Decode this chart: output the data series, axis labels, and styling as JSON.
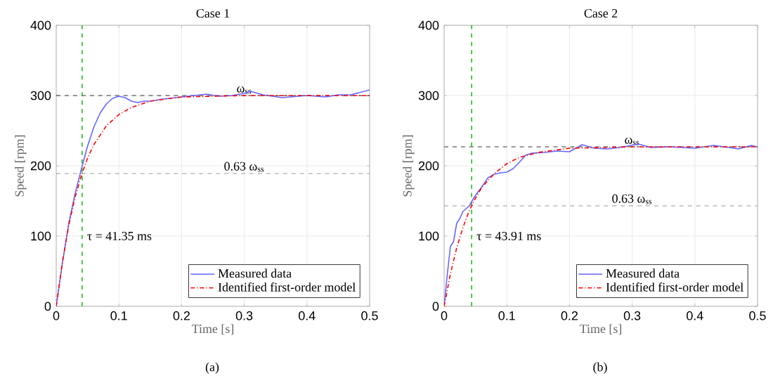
{
  "chart_data": [
    {
      "type": "line",
      "title": "Case 1",
      "xlabel": "Time [s]",
      "ylabel": "Speed [rpm]",
      "annotations": [
        "(a)"
      ],
      "xlim": [
        0,
        0.5
      ],
      "ylim": [
        0,
        400
      ],
      "xticks": [
        0,
        0.1,
        0.2,
        0.3,
        0.4,
        0.5
      ],
      "yticks": [
        0,
        100,
        200,
        300,
        400
      ],
      "grid": true,
      "legend": "bottom right",
      "marker": "none",
      "series": [
        {
          "name": "Measured data",
          "color": "#6666ff",
          "line_style": "solid",
          "x": [
            0,
            0.01,
            0.02,
            0.03,
            0.04,
            0.05,
            0.06,
            0.07,
            0.08,
            0.09,
            0.1,
            0.11,
            0.12,
            0.13,
            0.14,
            0.15,
            0.17,
            0.2,
            0.22,
            0.24,
            0.26,
            0.28,
            0.3,
            0.31,
            0.33,
            0.36,
            0.4,
            0.43,
            0.45,
            0.47,
            0.5
          ],
          "values": [
            0,
            62,
            118,
            160,
            195,
            228,
            255,
            275,
            288,
            296,
            299,
            297,
            292,
            290,
            292,
            292,
            295,
            298,
            300,
            302,
            299,
            300,
            303,
            306,
            301,
            297,
            300,
            298,
            301,
            301,
            308
          ]
        },
        {
          "name": "Identified first-order model",
          "color": "#ff0000",
          "line_style": "dashed",
          "x": [
            0,
            0.01,
            0.02,
            0.03,
            0.04,
            0.05,
            0.06,
            0.08,
            0.1,
            0.12,
            0.15,
            0.2,
            0.25,
            0.3,
            0.4,
            0.5
          ],
          "values": [
            0,
            64,
            115,
            155,
            186,
            211,
            230,
            257,
            273,
            283,
            292,
            298,
            299,
            300,
            300,
            300
          ]
        }
      ],
      "ref_lines": [
        {
          "axis": "y",
          "value": 300,
          "label": "ω$_{ss}$",
          "color": "#000000",
          "line_style": "dashed"
        },
        {
          "axis": "y",
          "value": 189,
          "label": "0.63 ω$_{ss}$",
          "color": "#808080",
          "line_style": "dashed"
        },
        {
          "axis": "x",
          "value": 0.04135,
          "label": "τ = 41.35 ms",
          "color": "#22bb22",
          "line_style": "dashed"
        }
      ]
    },
    {
      "type": "line",
      "title": "Case 2",
      "xlabel": "Time [s]",
      "ylabel": "Speed [rpm]",
      "annotations": [
        "(b)"
      ],
      "xlim": [
        0,
        0.5
      ],
      "ylim": [
        0,
        400
      ],
      "xticks": [
        0,
        0.1,
        0.2,
        0.3,
        0.4,
        0.5
      ],
      "yticks": [
        0,
        100,
        200,
        300,
        400
      ],
      "grid": true,
      "legend": "bottom right",
      "marker": "none",
      "series": [
        {
          "name": "Measured data",
          "color": "#6666ff",
          "line_style": "solid",
          "x": [
            0,
            0.005,
            0.01,
            0.015,
            0.02,
            0.025,
            0.03,
            0.04,
            0.05,
            0.06,
            0.07,
            0.08,
            0.09,
            0.1,
            0.11,
            0.12,
            0.13,
            0.14,
            0.16,
            0.18,
            0.2,
            0.22,
            0.24,
            0.26,
            0.28,
            0.31,
            0.33,
            0.36,
            0.4,
            0.43,
            0.47,
            0.49,
            0.5
          ],
          "values": [
            0,
            45,
            85,
            92,
            118,
            125,
            135,
            143,
            158,
            170,
            183,
            188,
            190,
            191,
            196,
            205,
            215,
            218,
            219,
            221,
            220,
            230,
            225,
            224,
            226,
            231,
            226,
            227,
            225,
            229,
            224,
            229,
            227
          ]
        },
        {
          "name": "Identified first-order model",
          "color": "#ff0000",
          "line_style": "dashed",
          "x": [
            0,
            0.01,
            0.02,
            0.03,
            0.04,
            0.05,
            0.06,
            0.08,
            0.1,
            0.12,
            0.15,
            0.2,
            0.25,
            0.3,
            0.4,
            0.5
          ],
          "values": [
            0,
            46,
            83,
            112,
            136,
            154,
            169,
            189,
            203,
            212,
            219,
            225,
            226,
            227,
            227,
            227
          ]
        }
      ],
      "ref_lines": [
        {
          "axis": "y",
          "value": 227,
          "label": "ω$_{ss}$",
          "color": "#000000",
          "line_style": "dashed"
        },
        {
          "axis": "y",
          "value": 143,
          "label": "0.63 ω$_{ss}$",
          "color": "#808080",
          "line_style": "dashed"
        },
        {
          "axis": "x",
          "value": 0.04391,
          "label": "τ = 43.91 ms",
          "color": "#22bb22",
          "line_style": "dashed"
        }
      ]
    }
  ]
}
